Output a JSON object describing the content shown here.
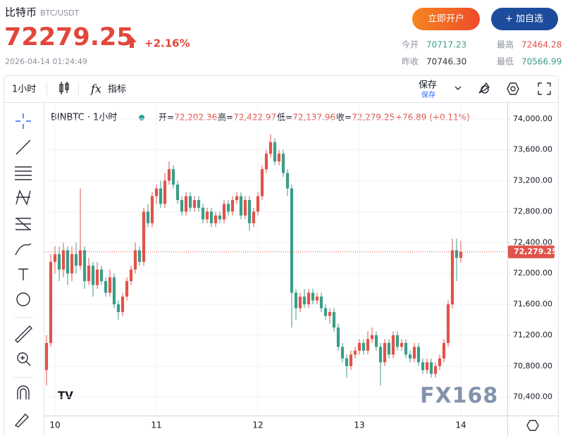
{
  "header": {
    "name": "比特币",
    "symbol": "BTC/USDT",
    "price": "72279.25",
    "change": "+2.16%",
    "datetime": "2026-04-14 01:24:49",
    "buttons": [
      "立即开户",
      "+ 加自选"
    ],
    "stats": [
      [
        "今开",
        "70717.23",
        "最高",
        "72464.28"
      ],
      [
        "昨收",
        "70746.30",
        "最低",
        "70566.99"
      ]
    ]
  },
  "toolbar": {
    "interval": "1小时",
    "indicators": "指标",
    "save": "保存",
    "save_sub": "保存"
  },
  "legend": {
    "symbol": "BINBTC · 1小时",
    "fields": [
      [
        "开=",
        "72,202.36"
      ],
      [
        "高=",
        "72,422.97"
      ],
      [
        "低=",
        "72,137.96"
      ],
      [
        "收=",
        "72,279.25"
      ]
    ],
    "change": "+76.89 (+0.11%)"
  },
  "chart_data": {
    "type": "candlestick",
    "up_color": "#e0534a",
    "down_color": "#3b9d88",
    "grid": true,
    "watermark": "FX168",
    "xlim": [
      -0.5,
      109
    ],
    "xticks": [
      {
        "value": 2,
        "label": "10"
      },
      {
        "value": 26,
        "label": "11"
      },
      {
        "value": 50,
        "label": "12"
      },
      {
        "value": 74,
        "label": "13"
      },
      {
        "value": 98,
        "label": "14"
      }
    ],
    "ylim": [
      70160,
      74190
    ],
    "yticks": [
      {
        "value": 70400,
        "label": "70,400.00"
      },
      {
        "value": 70800,
        "label": "70,800.00"
      },
      {
        "value": 71200,
        "label": "71,200.00"
      },
      {
        "value": 71600,
        "label": "71,600.00"
      },
      {
        "value": 72000,
        "label": "72,000.00"
      },
      {
        "value": 72400,
        "label": "72,400.00"
      },
      {
        "value": 72800,
        "label": "72,800.00"
      },
      {
        "value": 73200,
        "label": "73,200.00"
      },
      {
        "value": 73600,
        "label": "73,600.00"
      },
      {
        "value": 74000,
        "label": "74,000.00"
      }
    ],
    "price_line": {
      "value": 72279.25,
      "label": "72,279.25"
    },
    "series": [
      {
        "name": "BINBTC",
        "values": [
          [
            70750,
            71200,
            70550,
            71100
          ],
          [
            71100,
            72250,
            71050,
            72150
          ],
          [
            72150,
            72350,
            72000,
            72250
          ],
          [
            72250,
            72350,
            71900,
            72050
          ],
          [
            72050,
            72400,
            71950,
            72300
          ],
          [
            72300,
            72350,
            71850,
            72000
          ],
          [
            72000,
            72350,
            71900,
            72250
          ],
          [
            72250,
            72400,
            72000,
            72100
          ],
          [
            72100,
            73100,
            72050,
            72300
          ],
          [
            72300,
            72350,
            71800,
            71900
          ],
          [
            71900,
            72200,
            71850,
            72100
          ],
          [
            72100,
            72150,
            71700,
            71850
          ],
          [
            71850,
            72150,
            71800,
            72050
          ],
          [
            72050,
            72100,
            71850,
            71900
          ],
          [
            71900,
            71950,
            71700,
            71750
          ],
          [
            71750,
            72050,
            71700,
            71950
          ],
          [
            71950,
            72000,
            71550,
            71600
          ],
          [
            71600,
            71650,
            71400,
            71500
          ],
          [
            71500,
            71750,
            71450,
            71700
          ],
          [
            71700,
            71950,
            71650,
            71900
          ],
          [
            71900,
            72100,
            71850,
            72050
          ],
          [
            72050,
            72400,
            72000,
            72300
          ],
          [
            72300,
            72350,
            72100,
            72150
          ],
          [
            72150,
            72850,
            72100,
            72800
          ],
          [
            72800,
            72900,
            72600,
            72650
          ],
          [
            72650,
            73050,
            72600,
            73000
          ],
          [
            73000,
            73150,
            72900,
            73100
          ],
          [
            73100,
            73200,
            72850,
            72900
          ],
          [
            72900,
            73300,
            72850,
            73200
          ],
          [
            73200,
            73450,
            73150,
            73350
          ],
          [
            73350,
            73400,
            73100,
            73150
          ],
          [
            73150,
            73200,
            72900,
            72950
          ],
          [
            72950,
            73000,
            72750,
            72800
          ],
          [
            72800,
            73050,
            72750,
            73000
          ],
          [
            73000,
            73050,
            72800,
            72850
          ],
          [
            72850,
            73000,
            72800,
            72950
          ],
          [
            72950,
            73000,
            72800,
            72850
          ],
          [
            72850,
            72900,
            72650,
            72700
          ],
          [
            72700,
            72850,
            72650,
            72800
          ],
          [
            72800,
            72850,
            72600,
            72650
          ],
          [
            72650,
            72800,
            72600,
            72750
          ],
          [
            72750,
            72800,
            72650,
            72700
          ],
          [
            72700,
            72950,
            72650,
            72900
          ],
          [
            72900,
            72950,
            72750,
            72800
          ],
          [
            72800,
            73000,
            72750,
            72950
          ],
          [
            72950,
            73050,
            72900,
            73000
          ],
          [
            73000,
            73050,
            72700,
            72750
          ],
          [
            72750,
            73000,
            72700,
            72950
          ],
          [
            72950,
            73000,
            72550,
            72650
          ],
          [
            72650,
            72850,
            72600,
            72800
          ],
          [
            72800,
            73050,
            72750,
            73000
          ],
          [
            73000,
            73400,
            72950,
            73350
          ],
          [
            73350,
            73600,
            73300,
            73550
          ],
          [
            73550,
            73800,
            73500,
            73700
          ],
          [
            73700,
            73750,
            73400,
            73450
          ],
          [
            73450,
            73600,
            73400,
            73550
          ],
          [
            73550,
            73600,
            73250,
            73300
          ],
          [
            73300,
            73350,
            73000,
            73100
          ],
          [
            73100,
            73150,
            71300,
            71750
          ],
          [
            71750,
            71800,
            71400,
            71550
          ],
          [
            71550,
            71750,
            71500,
            71700
          ],
          [
            71700,
            71800,
            71550,
            71600
          ],
          [
            71600,
            71800,
            71550,
            71750
          ],
          [
            71750,
            71800,
            71600,
            71650
          ],
          [
            71650,
            71750,
            71600,
            71700
          ],
          [
            71700,
            71750,
            71500,
            71550
          ],
          [
            71550,
            71600,
            71400,
            71450
          ],
          [
            71450,
            71550,
            71350,
            71500
          ],
          [
            71500,
            71550,
            71250,
            71300
          ],
          [
            71300,
            71350,
            71000,
            71050
          ],
          [
            71050,
            71100,
            70850,
            70900
          ],
          [
            70900,
            70950,
            70650,
            70800
          ],
          [
            70800,
            71000,
            70750,
            70950
          ],
          [
            70950,
            71050,
            70900,
            71000
          ],
          [
            71000,
            71150,
            70950,
            71100
          ],
          [
            71100,
            71150,
            70950,
            71000
          ],
          [
            71000,
            71250,
            70950,
            71150
          ],
          [
            71150,
            71300,
            71100,
            71200
          ],
          [
            71200,
            71250,
            71000,
            71050
          ],
          [
            71050,
            71100,
            70550,
            70850
          ],
          [
            70850,
            71150,
            70800,
            71100
          ],
          [
            71100,
            71150,
            70900,
            70950
          ],
          [
            70950,
            71250,
            70900,
            71200
          ],
          [
            71200,
            71250,
            71000,
            71050
          ],
          [
            71050,
            71150,
            71000,
            71100
          ],
          [
            71100,
            71150,
            70900,
            70950
          ],
          [
            70950,
            71000,
            70850,
            70900
          ],
          [
            70900,
            71100,
            70850,
            71050
          ],
          [
            71050,
            71100,
            70800,
            70850
          ],
          [
            70850,
            70900,
            70700,
            70750
          ],
          [
            70750,
            70900,
            70700,
            70850
          ],
          [
            70850,
            70900,
            70650,
            70700
          ],
          [
            70700,
            70850,
            70650,
            70800
          ],
          [
            70800,
            70950,
            70750,
            70900
          ],
          [
            70900,
            71150,
            70850,
            71100
          ],
          [
            71100,
            71650,
            71050,
            71600
          ],
          [
            71600,
            72450,
            71550,
            72300
          ],
          [
            72300,
            72450,
            71900,
            72202.36
          ],
          [
            72202.36,
            72422.97,
            72137.96,
            72279.25
          ]
        ]
      }
    ]
  }
}
